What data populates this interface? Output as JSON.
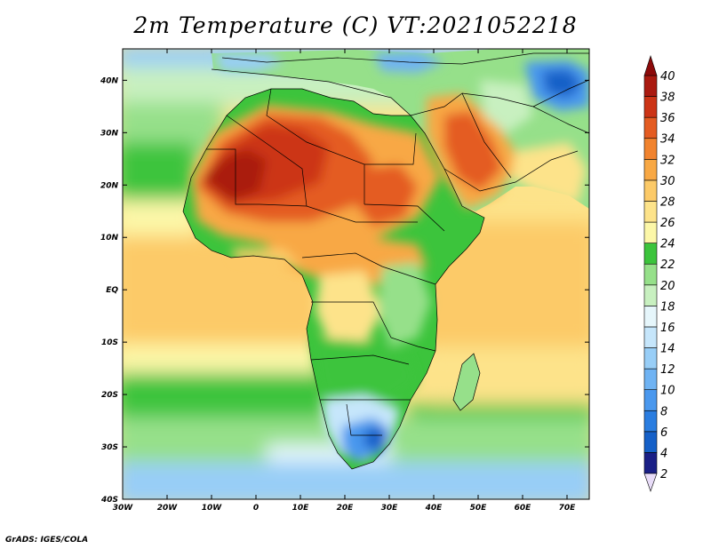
{
  "chart_data": {
    "type": "heatmap",
    "title": "2m Temperature (C) VT:2021052218",
    "x_ticks": [
      "30W",
      "20W",
      "10W",
      "0",
      "10E",
      "20E",
      "30E",
      "40E",
      "50E",
      "60E",
      "70E"
    ],
    "y_ticks": [
      "40N",
      "30N",
      "20N",
      "10N",
      "EQ",
      "10S",
      "20S",
      "30S",
      "40S"
    ],
    "xlim": [
      -30,
      75
    ],
    "ylim": [
      -40,
      46
    ],
    "colorbar": {
      "labels": [
        "2",
        "4",
        "6",
        "8",
        "10",
        "12",
        "14",
        "16",
        "18",
        "20",
        "22",
        "24",
        "26",
        "28",
        "30",
        "32",
        "34",
        "36",
        "38",
        "40"
      ],
      "colors": [
        "#e8dcf8",
        "#1a1f86",
        "#1560c8",
        "#2a7de0",
        "#4a98ee",
        "#6fb3f3",
        "#98cef7",
        "#c6e6fb",
        "#e6f6fb",
        "#c8f0c0",
        "#96e08a",
        "#3cc43c",
        "#fcf7a8",
        "#fde38a",
        "#fcca68",
        "#f8a844",
        "#f1832e",
        "#e45c22",
        "#cc3416",
        "#aa1a10",
        "#8c0a0a"
      ]
    }
  },
  "credit": "GrADS: IGES/COLA"
}
